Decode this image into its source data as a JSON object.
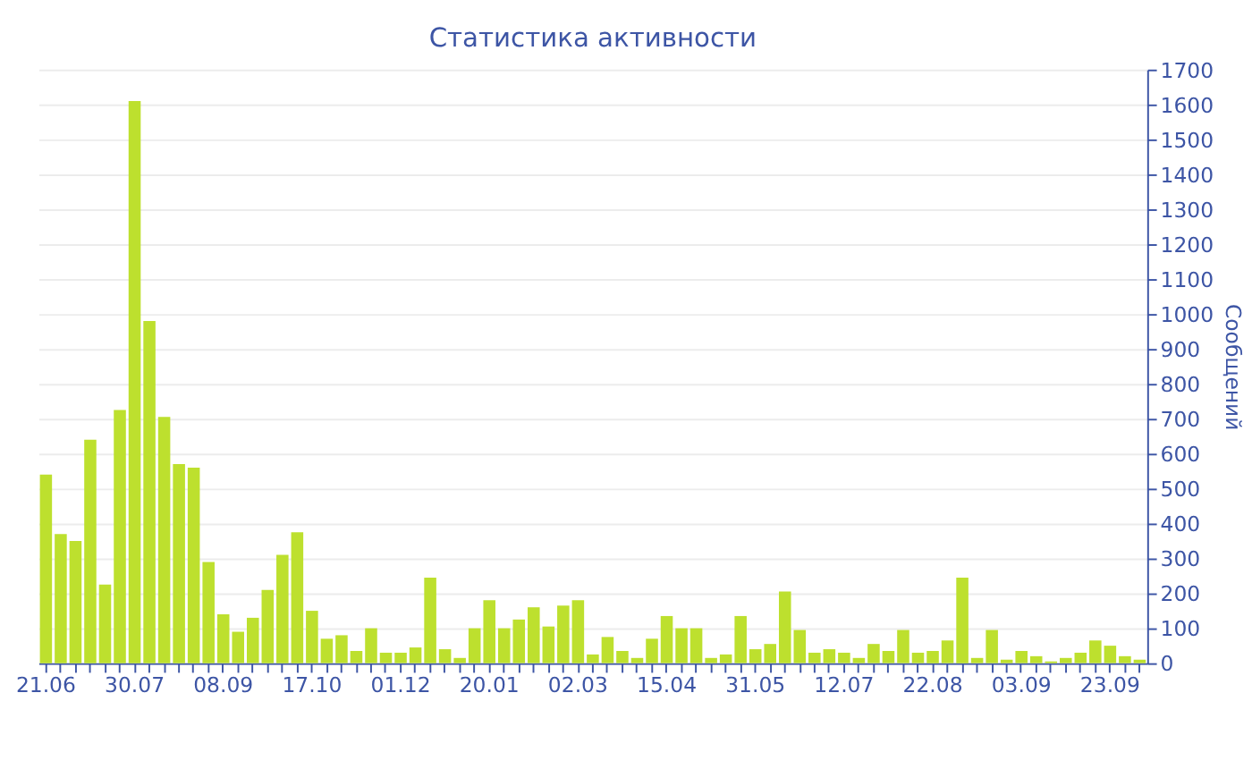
{
  "chart_data": {
    "type": "bar",
    "title": "Статистика активности",
    "ylabel": "Сообщений",
    "categories": [
      "21.06",
      null,
      null,
      null,
      null,
      null,
      "30.07",
      null,
      null,
      null,
      null,
      null,
      "08.09",
      null,
      null,
      null,
      null,
      null,
      "17.10",
      null,
      null,
      null,
      null,
      null,
      "01.12",
      null,
      null,
      null,
      null,
      null,
      "20.01",
      null,
      null,
      null,
      null,
      null,
      "02.03",
      null,
      null,
      null,
      null,
      null,
      "15.04",
      null,
      null,
      null,
      null,
      null,
      "31.05",
      null,
      null,
      null,
      null,
      null,
      "12.07",
      null,
      null,
      null,
      null,
      null,
      "22.08",
      null,
      null,
      null,
      null,
      null,
      "03.09",
      null,
      null,
      null,
      null,
      null,
      "23.09",
      null,
      null
    ],
    "values": [
      540,
      370,
      350,
      640,
      225,
      725,
      1610,
      980,
      705,
      570,
      560,
      290,
      140,
      90,
      130,
      210,
      310,
      375,
      150,
      70,
      80,
      35,
      100,
      30,
      30,
      45,
      245,
      40,
      15,
      100,
      180,
      100,
      125,
      160,
      105,
      165,
      180,
      25,
      75,
      35,
      15,
      70,
      135,
      100,
      100,
      15,
      25,
      135,
      40,
      55,
      205,
      95,
      30,
      40,
      30,
      15,
      55,
      35,
      95,
      30,
      35,
      65,
      245,
      15,
      95,
      10,
      35,
      20,
      5,
      15,
      30,
      65,
      50,
      20,
      10
    ],
    "color": "#bde02e",
    "ylim": [
      0,
      1700
    ],
    "yticks": [
      0,
      100,
      200,
      300,
      400,
      500,
      600,
      700,
      800,
      900,
      1000,
      1100,
      1200,
      1300,
      1400,
      1500,
      1600,
      1700
    ],
    "grid": "y"
  }
}
